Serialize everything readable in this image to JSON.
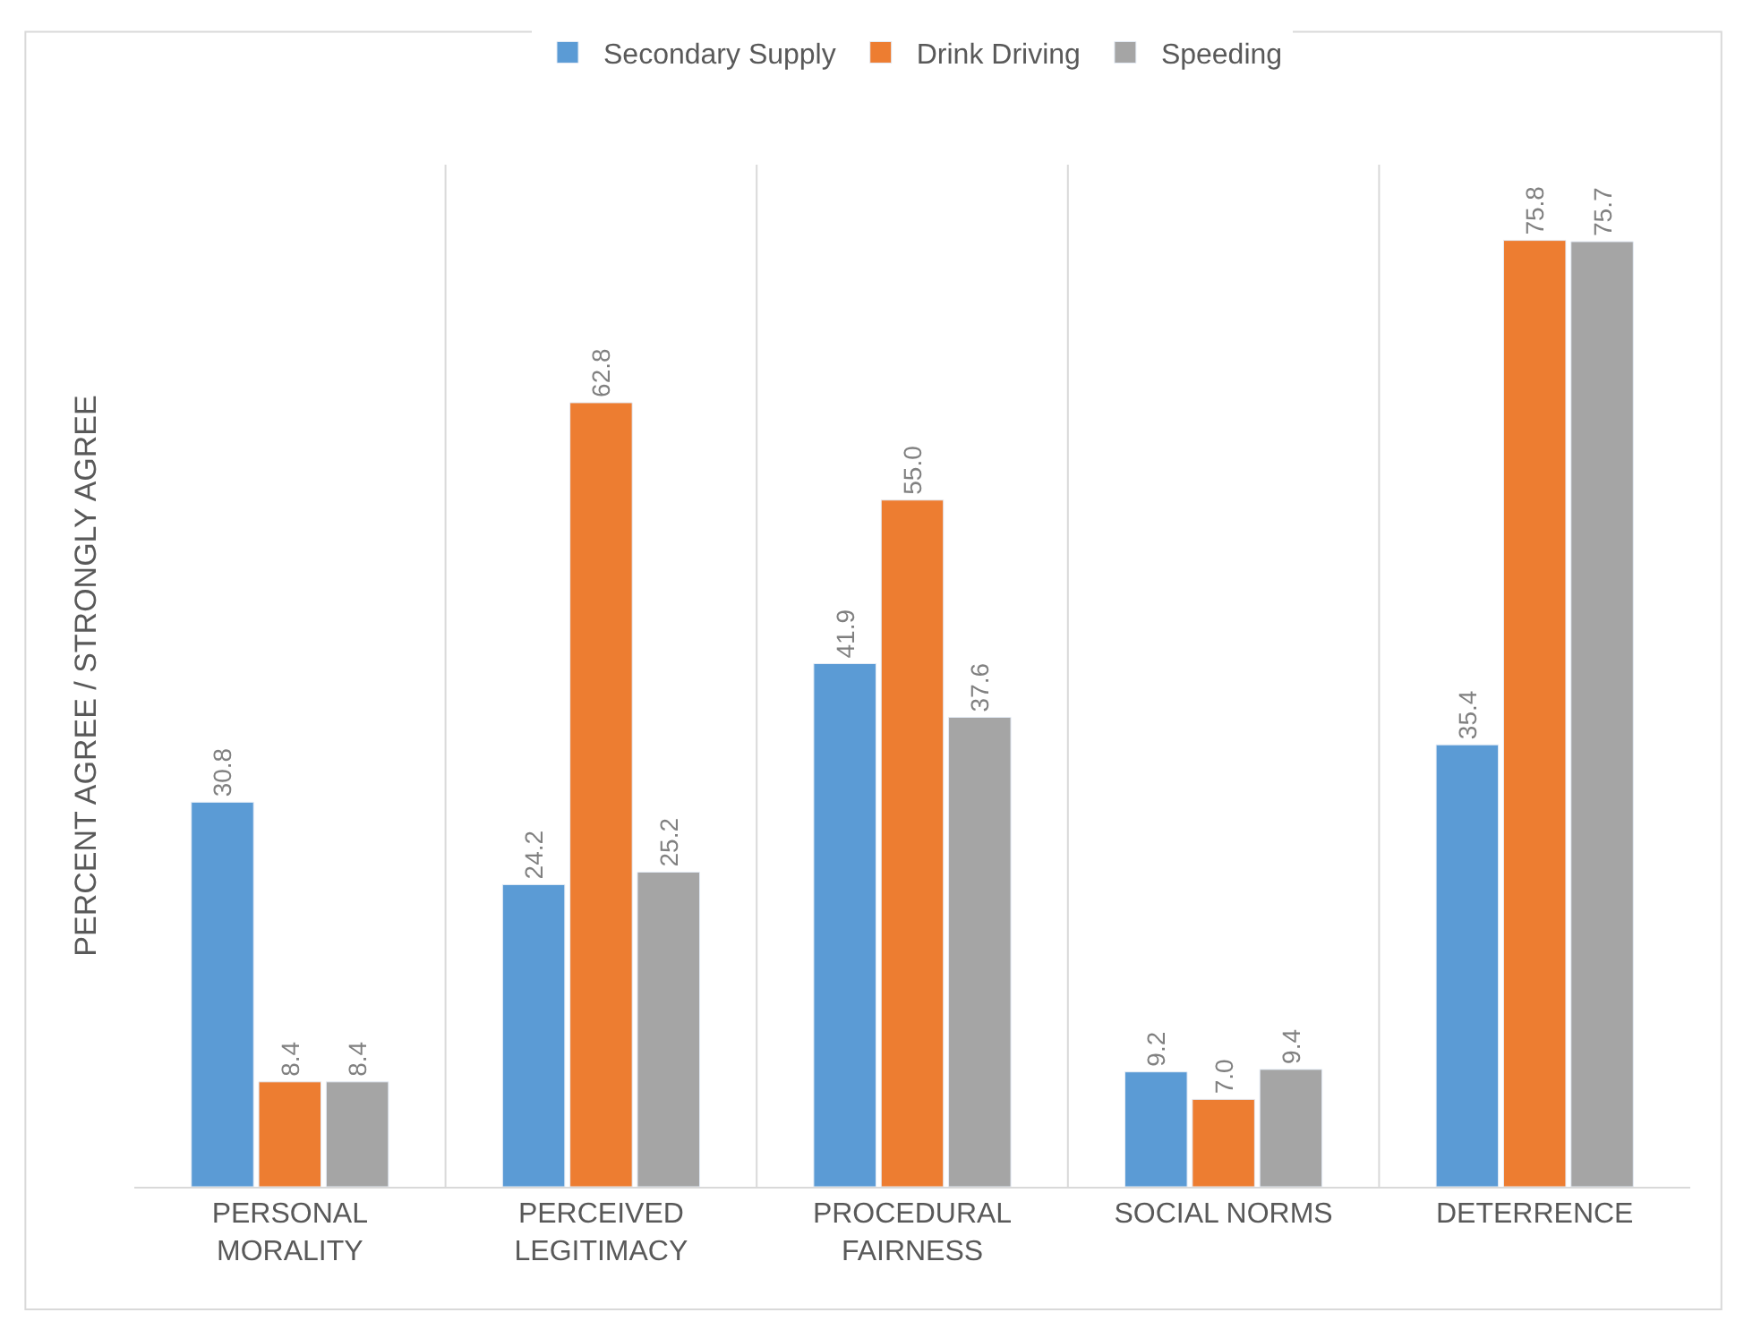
{
  "chart_data": {
    "type": "bar",
    "ylabel": "PERCENT AGREE / STRONGLY AGREE",
    "categories": [
      "PERSONAL MORALITY",
      "PERCEIVED LEGITIMACY",
      "PROCEDURAL FAIRNESS",
      "SOCIAL NORMS",
      "DETERRENCE"
    ],
    "series": [
      {
        "name": "Secondary Supply",
        "color": "#5b9bd5",
        "values": [
          30.8,
          24.2,
          41.9,
          9.2,
          35.4
        ],
        "value_labels": [
          "30.8",
          "24.2",
          "41.9",
          "9.2",
          "35.4"
        ]
      },
      {
        "name": "Drink Driving",
        "color": "#ed7d31",
        "values": [
          8.4,
          62.8,
          55.0,
          7.0,
          75.8
        ],
        "value_labels": [
          "8.4",
          "62.8",
          "55.0",
          "7.0",
          "75.8"
        ]
      },
      {
        "name": "Speeding",
        "color": "#a5a5a5",
        "values": [
          8.4,
          25.2,
          37.6,
          9.4,
          75.7
        ],
        "value_labels": [
          "8.4",
          "25.2",
          "37.6",
          "9.4",
          "75.7"
        ]
      }
    ],
    "grid": "x",
    "legend": "top",
    "tick_labels": "x"
  }
}
